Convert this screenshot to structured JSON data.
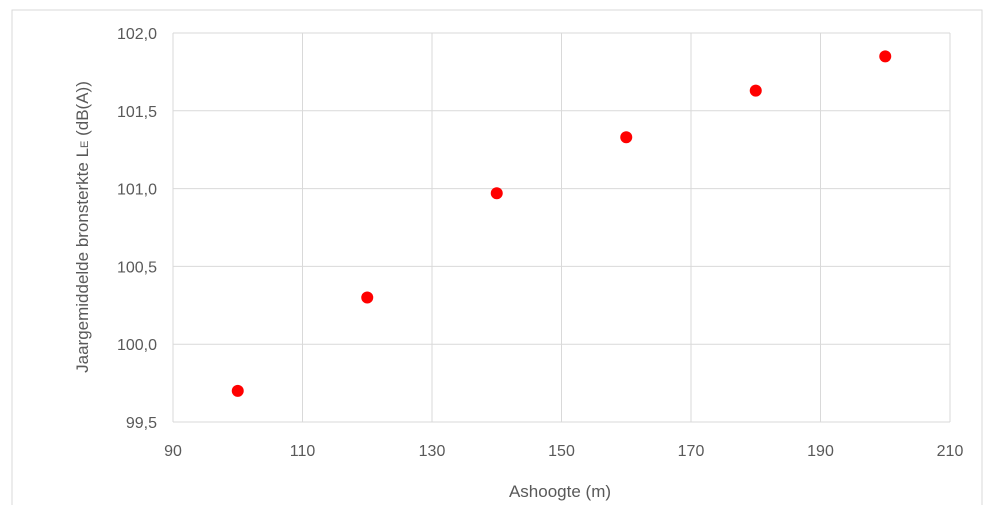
{
  "chart_data": {
    "type": "scatter",
    "title": "",
    "xlabel": "Ashoogte (m)",
    "ylabel": "Jaargemiddelde bronsterkte L",
    "ylabel_subscript": "E",
    "ylabel_suffix": " (dB(A))",
    "xlim": [
      90,
      210
    ],
    "ylim": [
      99.5,
      102.0
    ],
    "x_ticks": [
      90,
      110,
      130,
      150,
      170,
      190,
      210
    ],
    "y_ticks": [
      99.5,
      100.0,
      100.5,
      101.0,
      101.5,
      102.0
    ],
    "y_tick_labels": [
      "99,5",
      "100,0",
      "100,5",
      "101,0",
      "101,5",
      "102,0"
    ],
    "grid": true,
    "legend": "none",
    "marker_color": "#ff0000",
    "series": [
      {
        "x": [
          100,
          120,
          140,
          160,
          180,
          200
        ],
        "y": [
          99.7,
          100.3,
          100.97,
          101.33,
          101.63,
          101.85
        ]
      }
    ]
  }
}
